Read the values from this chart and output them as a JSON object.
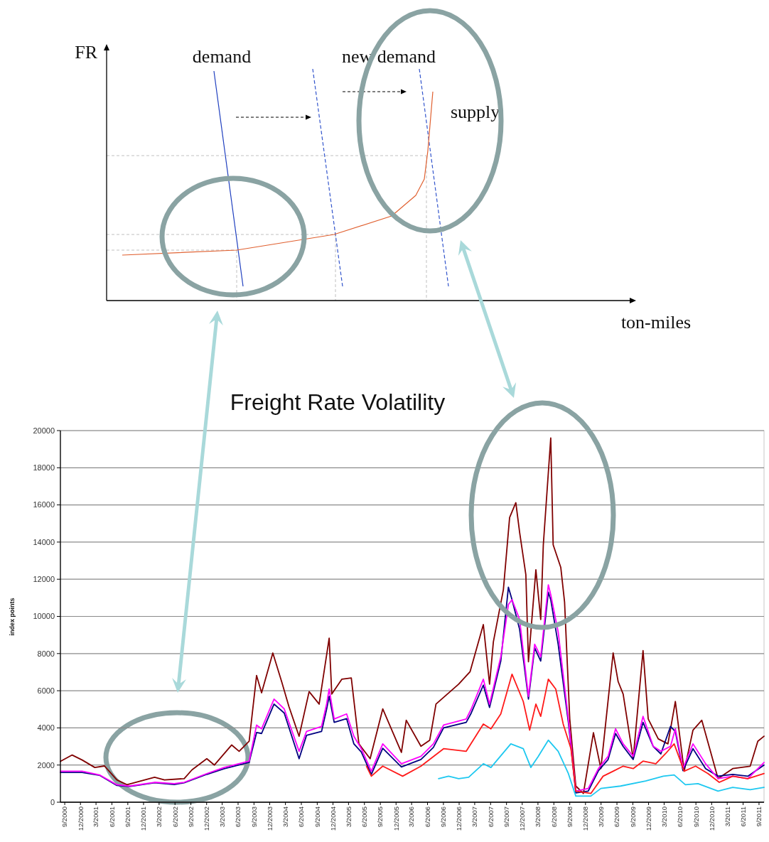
{
  "chart_data": [
    {
      "type": "other",
      "xlabel": "ton-miles",
      "ylabel": "FR",
      "annotations": [
        "demand",
        "new demand",
        "supply"
      ]
    },
    {
      "type": "line",
      "title": "Freight Rate Volatility",
      "ylabel": "index points",
      "grid": "y",
      "ylim": [
        0,
        20000
      ],
      "yticks": [
        0,
        2000,
        4000,
        6000,
        8000,
        10000,
        12000,
        14000,
        16000,
        18000,
        20000
      ],
      "xlim": [
        "2000-08-07",
        "2011-09-30"
      ],
      "xticks": [
        {
          "value": "2000-09-01",
          "label": "9/2000"
        },
        {
          "value": "2000-12-01",
          "label": "12/2000"
        },
        {
          "value": "2001-03-01",
          "label": "3/2001"
        },
        {
          "value": "2001-06-01",
          "label": "6/2001"
        },
        {
          "value": "2001-09-01",
          "label": "9/2001"
        },
        {
          "value": "2001-12-01",
          "label": "12/2001"
        },
        {
          "value": "2002-03-01",
          "label": "3/2002"
        },
        {
          "value": "2002-06-01",
          "label": "6/2002"
        },
        {
          "value": "2002-09-01",
          "label": "9/2002"
        },
        {
          "value": "2002-12-01",
          "label": "12/2002"
        },
        {
          "value": "2003-03-01",
          "label": "3/2003"
        },
        {
          "value": "2003-06-01",
          "label": "6/2003"
        },
        {
          "value": "2003-09-01",
          "label": "9/2003"
        },
        {
          "value": "2003-12-01",
          "label": "12/2003"
        },
        {
          "value": "2004-03-01",
          "label": "3/2004"
        },
        {
          "value": "2004-06-01",
          "label": "6/2004"
        },
        {
          "value": "2004-09-01",
          "label": "9/2004"
        },
        {
          "value": "2004-12-01",
          "label": "12/2004"
        },
        {
          "value": "2005-03-01",
          "label": "3/2005"
        },
        {
          "value": "2005-06-01",
          "label": "6/2005"
        },
        {
          "value": "2005-09-01",
          "label": "9/2005"
        },
        {
          "value": "2005-12-01",
          "label": "12/2005"
        },
        {
          "value": "2006-03-01",
          "label": "3/2006"
        },
        {
          "value": "2006-06-01",
          "label": "6/2006"
        },
        {
          "value": "2006-09-01",
          "label": "9/2006"
        },
        {
          "value": "2006-12-01",
          "label": "12/2006"
        },
        {
          "value": "2007-03-01",
          "label": "3/2007"
        },
        {
          "value": "2007-06-01",
          "label": "6/2007"
        },
        {
          "value": "2007-09-01",
          "label": "9/2007"
        },
        {
          "value": "2007-12-01",
          "label": "12/2007"
        },
        {
          "value": "2008-03-01",
          "label": "3/2008"
        },
        {
          "value": "2008-06-01",
          "label": "6/2008"
        },
        {
          "value": "2008-09-01",
          "label": "9/2008"
        },
        {
          "value": "2008-12-01",
          "label": "12/2008"
        },
        {
          "value": "2009-03-01",
          "label": "3/2009"
        },
        {
          "value": "2009-06-01",
          "label": "6/2009"
        },
        {
          "value": "2009-09-01",
          "label": "9/2009"
        },
        {
          "value": "2009-12-01",
          "label": "12/2009"
        },
        {
          "value": "2010-03-01",
          "label": "3/2010"
        },
        {
          "value": "2010-06-01",
          "label": "6/2010"
        },
        {
          "value": "2010-09-01",
          "label": "9/2010"
        },
        {
          "value": "2010-12-01",
          "label": "12/2010"
        },
        {
          "value": "2011-03-01",
          "label": "3/2011"
        },
        {
          "value": "2011-06-01",
          "label": "6/2011"
        },
        {
          "value": "2011-09-01",
          "label": "9/2011"
        }
      ],
      "series": [
        {
          "color": "#800000",
          "x": [
            "2000-08-07",
            "2000-10-14",
            "2000-12-11",
            "2001-02-22",
            "2001-04-19",
            "2001-06-30",
            "2001-08-27",
            "2002-02-03",
            "2002-04-01",
            "2002-07-24",
            "2002-09-07",
            "2002-12-02",
            "2003-01-15",
            "2003-04-25",
            "2003-06-07",
            "2003-08-04",
            "2003-09-16",
            "2003-10-15",
            "2003-12-19",
            "2004-02-08",
            "2004-03-21",
            "2004-05-19",
            "2004-07-16",
            "2004-09-12",
            "2004-11-09",
            "2004-11-24",
            "2005-01-21",
            "2005-03-17",
            "2005-04-30",
            "2005-07-04",
            "2005-09-15",
            "2006-01-01",
            "2006-01-29",
            "2006-04-24",
            "2006-06-14",
            "2006-07-20",
            "2006-11-28",
            "2007-02-02",
            "2007-04-20",
            "2007-05-26",
            "2007-06-17",
            "2007-08-14",
            "2007-09-19",
            "2007-10-25",
            "2007-11-16",
            "2007-12-22",
            "2008-01-06",
            "2008-02-18",
            "2008-03-17",
            "2008-04-01",
            "2008-05-14",
            "2008-05-28",
            "2008-07-11",
            "2008-08-02",
            "2008-09-01",
            "2008-10-06",
            "2008-11-19",
            "2009-01-16",
            "2009-02-28",
            "2009-05-10",
            "2009-06-08",
            "2009-07-07",
            "2009-09-03",
            "2009-10-30",
            "2009-11-29",
            "2010-01-26",
            "2010-03-23",
            "2010-05-05",
            "2010-06-25",
            "2010-08-15",
            "2010-10-05",
            "2011-01-07",
            "2011-04-02",
            "2011-07-12",
            "2011-08-25",
            "2011-09-30"
          ],
          "values": [
            2200,
            2540,
            2270,
            1870,
            1950,
            1200,
            940,
            1340,
            1200,
            1270,
            1740,
            2340,
            2000,
            3080,
            2740,
            3280,
            6820,
            5890,
            8030,
            6490,
            5150,
            3550,
            5950,
            5280,
            8830,
            5820,
            6620,
            6690,
            3140,
            2340,
            5020,
            2680,
            4410,
            3010,
            3340,
            5280,
            6350,
            7020,
            9560,
            6350,
            8630,
            11440,
            15320,
            16120,
            14520,
            12240,
            7560,
            12510,
            9830,
            13850,
            19600,
            13850,
            12640,
            10770,
            4480,
            870,
            470,
            3740,
            1810,
            8030,
            6490,
            5820,
            2340,
            8160,
            4480,
            3410,
            3140,
            5420,
            1670,
            3880,
            4410,
            1270,
            1810,
            1940,
            3280,
            3550
          ]
        },
        {
          "color": "#000080",
          "x": [
            "2000-08-07",
            "2000-12-11",
            "2001-03-21",
            "2001-06-30",
            "2001-09-11",
            "2002-02-03",
            "2002-05-28",
            "2002-07-24",
            "2002-12-02",
            "2003-03-12",
            "2003-08-04",
            "2003-09-16",
            "2003-10-15",
            "2003-12-26",
            "2004-02-23",
            "2004-05-19",
            "2004-07-01",
            "2004-09-26",
            "2004-10-25",
            "2004-11-09",
            "2004-12-08",
            "2005-02-18",
            "2005-04-01",
            "2005-05-14",
            "2005-07-11",
            "2005-09-15",
            "2006-01-01",
            "2006-04-24",
            "2006-07-05",
            "2006-09-02",
            "2007-01-11",
            "2007-02-09",
            "2007-04-20",
            "2007-05-26",
            "2007-07-30",
            "2007-09-12",
            "2007-10-03",
            "2007-11-16",
            "2008-01-06",
            "2008-02-11",
            "2008-03-17",
            "2008-04-30",
            "2008-05-14",
            "2008-06-26",
            "2008-08-24",
            "2008-10-06",
            "2008-12-17",
            "2009-02-14",
            "2009-04-11",
            "2009-05-24",
            "2009-07-07",
            "2009-09-03",
            "2009-10-30",
            "2009-12-28",
            "2010-02-10",
            "2010-04-07",
            "2010-05-05",
            "2010-06-18",
            "2010-08-15",
            "2010-10-27",
            "2011-01-07",
            "2011-04-02",
            "2011-06-28",
            "2011-09-30"
          ],
          "values": [
            1600,
            1600,
            1450,
            900,
            850,
            1050,
            950,
            1050,
            1500,
            1800,
            2150,
            3750,
            3700,
            5280,
            4800,
            2340,
            3600,
            3810,
            5000,
            5700,
            4300,
            4500,
            3140,
            2700,
            1500,
            2900,
            1900,
            2300,
            2950,
            4000,
            4300,
            4800,
            6300,
            5100,
            7600,
            11570,
            10900,
            9300,
            5550,
            8300,
            7600,
            11300,
            10900,
            8500,
            4300,
            500,
            600,
            1700,
            2300,
            3700,
            3000,
            2300,
            4300,
            3000,
            2600,
            4080,
            3800,
            1700,
            2880,
            1810,
            1400,
            1500,
            1400,
            2000
          ]
        },
        {
          "color": "#ff00ff",
          "x": [
            "2000-08-07",
            "2000-12-11",
            "2001-03-21",
            "2001-06-30",
            "2001-09-11",
            "2002-02-03",
            "2002-05-28",
            "2002-07-24",
            "2002-12-02",
            "2003-03-12",
            "2003-08-04",
            "2003-09-16",
            "2003-10-15",
            "2003-12-26",
            "2004-02-23",
            "2004-05-19",
            "2004-07-01",
            "2004-09-26",
            "2004-10-25",
            "2004-11-09",
            "2004-12-08",
            "2005-02-18",
            "2005-04-01",
            "2005-05-14",
            "2005-07-11",
            "2005-09-15",
            "2006-01-01",
            "2006-04-24",
            "2006-07-05",
            "2006-09-02",
            "2007-01-11",
            "2007-02-09",
            "2007-04-20",
            "2007-05-26",
            "2007-07-30",
            "2007-09-12",
            "2007-10-03",
            "2007-11-16",
            "2008-01-06",
            "2008-02-11",
            "2008-03-17",
            "2008-04-30",
            "2008-05-14",
            "2008-06-26",
            "2008-08-24",
            "2008-10-06",
            "2008-12-17",
            "2009-02-14",
            "2009-04-11",
            "2009-05-24",
            "2009-07-07",
            "2009-09-03",
            "2009-10-30",
            "2009-12-28",
            "2010-02-10",
            "2010-04-07",
            "2010-05-05",
            "2010-06-18",
            "2010-08-15",
            "2010-10-27",
            "2011-01-07",
            "2011-04-02",
            "2011-06-28",
            "2011-09-30"
          ],
          "values": [
            1670,
            1670,
            1470,
            940,
            870,
            1070,
            1000,
            1070,
            1540,
            1870,
            2210,
            4150,
            3950,
            5550,
            5020,
            2740,
            3810,
            4080,
            5280,
            6090,
            4480,
            4750,
            3550,
            2880,
            1670,
            3140,
            2070,
            2470,
            3140,
            4150,
            4480,
            5020,
            6620,
            5280,
            7830,
            10640,
            10900,
            9830,
            5690,
            8500,
            7830,
            11700,
            11170,
            9160,
            4480,
            600,
            740,
            1810,
            2470,
            3950,
            3140,
            2470,
            4620,
            3010,
            2740,
            3010,
            3950,
            1810,
            3140,
            2070,
            1270,
            1400,
            1270,
            2140
          ]
        },
        {
          "color": "#ff1a1a",
          "x": [
            "2005-06-13",
            "2005-07-11",
            "2005-09-15",
            "2006-01-08",
            "2006-04-24",
            "2006-09-02",
            "2007-01-11",
            "2007-04-20",
            "2007-06-03",
            "2007-07-30",
            "2007-10-03",
            "2007-12-07",
            "2008-01-13",
            "2008-02-18",
            "2008-03-17",
            "2008-04-30",
            "2008-06-12",
            "2008-07-25",
            "2008-09-08",
            "2008-10-06",
            "2009-01-01",
            "2009-03-13",
            "2009-05-10",
            "2009-07-07",
            "2009-09-03",
            "2009-10-30",
            "2010-01-12",
            "2010-03-09",
            "2010-04-28",
            "2010-06-25",
            "2010-08-30",
            "2010-11-10",
            "2011-01-14",
            "2011-04-02",
            "2011-06-28",
            "2011-09-30"
          ],
          "values": [
            1940,
            1400,
            1940,
            1400,
            1940,
            2880,
            2740,
            4210,
            3950,
            4750,
            6890,
            5420,
            3880,
            5280,
            4620,
            6620,
            6090,
            4210,
            2880,
            600,
            470,
            1400,
            1670,
            1940,
            1810,
            2210,
            2070,
            2610,
            3140,
            1670,
            1940,
            1540,
            1070,
            1400,
            1270,
            1540
          ]
        },
        {
          "color": "#1ec8f0",
          "x": [
            "2006-08-04",
            "2006-10-01",
            "2006-11-28",
            "2007-01-25",
            "2007-04-20",
            "2007-06-03",
            "2007-09-26",
            "2007-12-07",
            "2008-01-20",
            "2008-03-03",
            "2008-04-30",
            "2008-06-26",
            "2008-08-24",
            "2008-10-06",
            "2009-01-01",
            "2009-02-28",
            "2009-06-22",
            "2009-11-14",
            "2010-02-24",
            "2010-04-28",
            "2010-07-02",
            "2010-09-13",
            "2011-01-07",
            "2011-04-02",
            "2011-07-12",
            "2011-09-30"
          ],
          "values": [
            1270,
            1400,
            1270,
            1340,
            2070,
            1870,
            3140,
            2880,
            1870,
            2470,
            3340,
            2740,
            1540,
            330,
            330,
            740,
            870,
            1140,
            1400,
            1470,
            940,
            1000,
            600,
            800,
            670,
            800
          ]
        }
      ]
    }
  ]
}
